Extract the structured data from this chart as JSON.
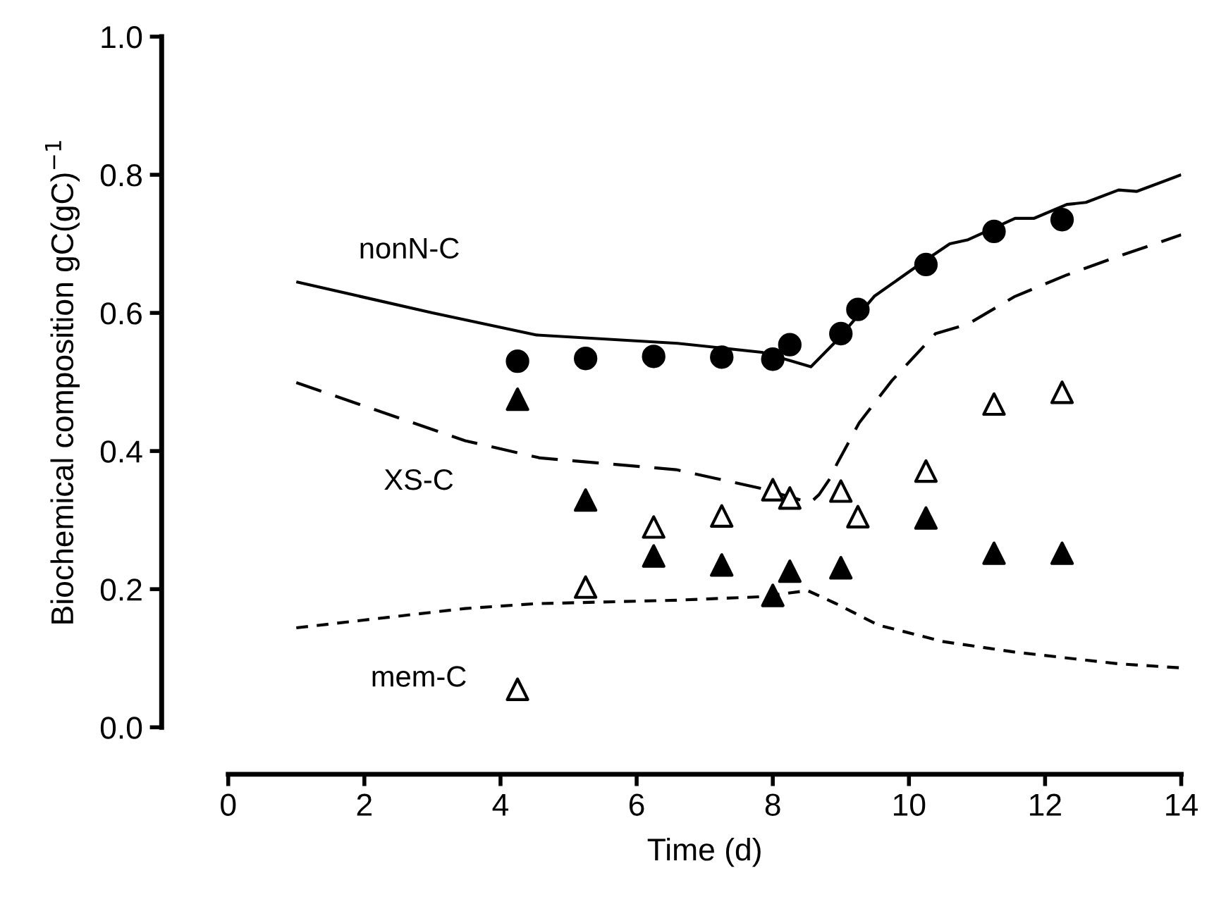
{
  "chart_data": {
    "type": "scatter",
    "xlabel": "Time (d)",
    "ylabel": "Biochemical composition gC(gC)$^{−1}$",
    "xlim": [
      0,
      14
    ],
    "ylim": [
      0,
      1.0
    ],
    "xticks": [
      0,
      2,
      4,
      6,
      8,
      10,
      12,
      14
    ],
    "yticks": [
      {
        "value": 0,
        "label": "0.0"
      },
      {
        "value": 0.2,
        "label": "0.2"
      },
      {
        "value": 0.4,
        "label": "0.4"
      },
      {
        "value": 0.6,
        "label": "0.6"
      },
      {
        "value": 0.8,
        "label": "0.8"
      },
      {
        "value": 1.0,
        "label": "1.0"
      }
    ],
    "grid": false,
    "series": [
      {
        "type": "line",
        "name": "nonN-C",
        "line_style": "solid",
        "color": "#000000",
        "x": [
          1.0,
          3.0,
          4.53,
          6.6,
          7.84,
          8.56,
          8.94,
          9.49,
          10.18,
          10.6,
          10.87,
          11.56,
          11.84,
          12.32,
          12.6,
          13.08,
          13.35,
          14.0
        ],
        "values": [
          0.645,
          0.6,
          0.568,
          0.556,
          0.543,
          0.522,
          0.56,
          0.624,
          0.672,
          0.7,
          0.706,
          0.737,
          0.737,
          0.757,
          0.76,
          0.778,
          0.776,
          0.8
        ]
      },
      {
        "type": "line",
        "name": "XS-C",
        "line_style": "dashed",
        "color": "#000000",
        "x": [
          1.0,
          3.48,
          4.58,
          6.58,
          7.82,
          8.55,
          8.68,
          8.86,
          8.94,
          9.27,
          9.75,
          10.39,
          10.87,
          11.56,
          12.32,
          13.08,
          14.0
        ],
        "values": [
          0.499,
          0.415,
          0.39,
          0.373,
          0.346,
          0.325,
          0.337,
          0.363,
          0.381,
          0.441,
          0.502,
          0.57,
          0.584,
          0.624,
          0.655,
          0.682,
          0.713
        ]
      },
      {
        "type": "line",
        "name": "mem-C",
        "line_style": "dotted",
        "color": "#000000",
        "x": [
          1.0,
          3.48,
          4.51,
          6.58,
          7.82,
          8.51,
          8.93,
          9.55,
          10.51,
          11.55,
          13.07,
          14.0
        ],
        "values": [
          0.144,
          0.172,
          0.179,
          0.184,
          0.189,
          0.198,
          0.179,
          0.148,
          0.124,
          0.109,
          0.092,
          0.086
        ]
      },
      {
        "marker": "circle",
        "color": "#000000",
        "x": [
          4.25,
          5.25,
          6.25,
          7.25,
          8.0,
          8.25,
          9.0,
          9.25,
          10.25,
          11.25,
          12.25
        ],
        "values": [
          0.53,
          0.534,
          0.537,
          0.536,
          0.533,
          0.554,
          0.57,
          0.605,
          0.67,
          0.718,
          0.735
        ]
      },
      {
        "marker": "triangle",
        "color": "#000000",
        "x": [
          4.25,
          5.25,
          6.25,
          7.25,
          8.0,
          8.25,
          9.0,
          10.25,
          11.25,
          12.25
        ],
        "values": [
          0.475,
          0.329,
          0.248,
          0.235,
          0.191,
          0.226,
          0.231,
          0.303,
          0.252,
          0.252
        ]
      },
      {
        "marker": "triangle",
        "color": "#ffffff",
        "x": [
          4.25,
          5.25,
          6.25,
          7.25,
          8.0,
          8.25,
          9.0,
          9.25,
          10.25,
          11.25,
          12.25
        ],
        "values": [
          0.055,
          0.203,
          0.29,
          0.306,
          0.344,
          0.332,
          0.342,
          0.305,
          0.371,
          0.468,
          0.485
        ]
      }
    ]
  }
}
